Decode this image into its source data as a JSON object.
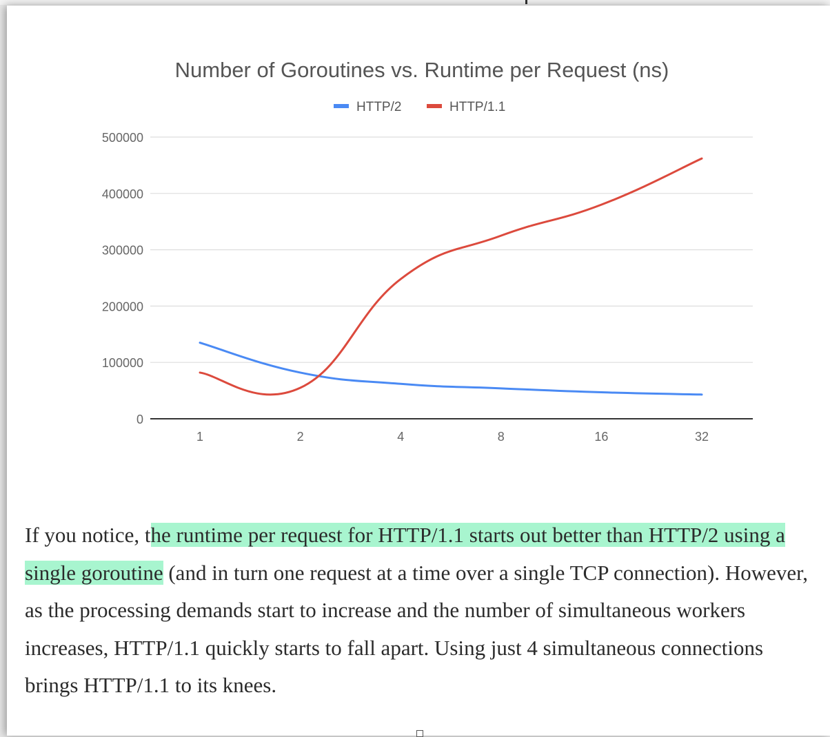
{
  "chart_data": {
    "type": "line",
    "title": "Number of Goroutines vs. Runtime per Request (ns)",
    "categories": [
      "1",
      "2",
      "4",
      "8",
      "16",
      "32"
    ],
    "series": [
      {
        "name": "HTTP/2",
        "color": "#4a8af4",
        "values": [
          135000,
          82000,
          62000,
          54000,
          47000,
          43000
        ]
      },
      {
        "name": "HTTP/1.1",
        "color": "#dc4a3d",
        "values": [
          82000,
          55000,
          248000,
          325000,
          380000,
          462000
        ]
      }
    ],
    "y_ticks": [
      "0",
      "100000",
      "200000",
      "300000",
      "400000",
      "500000"
    ],
    "ylim": [
      0,
      500000
    ],
    "grid": true,
    "legend_position": "top-center",
    "xlabel": "",
    "ylabel": ""
  },
  "article": {
    "text_before_highlight": "If you notice, t",
    "highlight": "he runtime per request for HTTP/1.1 starts out better than HTTP/2 using a single goroutine",
    "text_after_highlight": " (and in turn one request at a time over a single TCP connection). However, as the processing demands start to increase and the number of simultaneous workers increases, HTTP/1.1 quickly starts to fall apart. Using just 4 simultaneous connections brings HTTP/1.1 to its knees."
  },
  "colors": {
    "highlight": "#a8f5cf",
    "text": "#2b2b2b",
    "grid": "#dddddd",
    "axis": "#333333"
  }
}
